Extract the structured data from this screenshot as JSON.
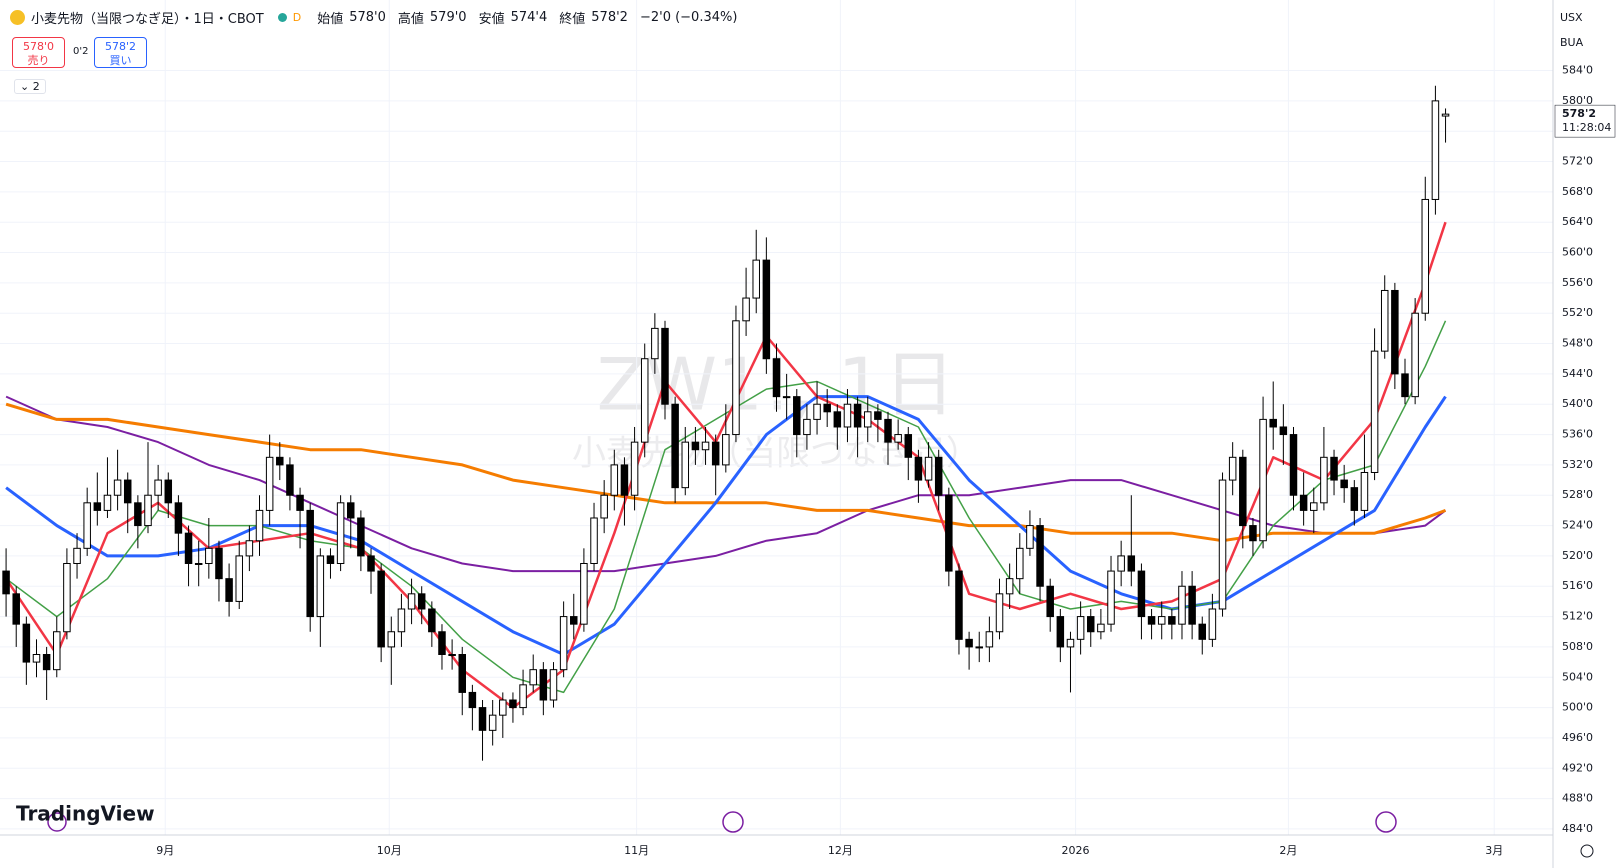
{
  "chart_data": {
    "type": "candlestick",
    "symbol": "小麦先物（当限つなぎ足）・1日・CBOT",
    "summary": {
      "open_label": "始値",
      "open": "578'0",
      "high_label": "高値",
      "high": "579'0",
      "low_label": "安値",
      "low": "574'4",
      "close_label": "終値",
      "close": "578'2",
      "change": "−2'0 (−0.34%)"
    },
    "sell": {
      "price": "578'0",
      "label": "売り"
    },
    "spread": "0'2",
    "buy": {
      "price": "578'2",
      "label": "買い"
    },
    "indicator_count": "2",
    "watermark": "ZW1!, 1日",
    "watermark_sub": "小麦先物（当限つなぎ足）",
    "currency": "USX",
    "unit": "BUA",
    "brand": "TradingView",
    "last_price": {
      "value": 578.25,
      "label": "578'2"
    },
    "countdown": "11:28:04",
    "up_color": "#ffffff",
    "down_color": "#000000",
    "xlim": [
      -0.6,
      152.6
    ],
    "xticks": [
      {
        "value": 15.7,
        "label": "9月"
      },
      {
        "value": 37.8,
        "label": "10月"
      },
      {
        "value": 62.2,
        "label": "11月"
      },
      {
        "value": 82.3,
        "label": "12月"
      },
      {
        "value": 105.5,
        "label": "2026"
      },
      {
        "value": 126.5,
        "label": "2月"
      },
      {
        "value": 146.8,
        "label": "3月"
      }
    ],
    "ylim": [
      483.2,
      593.3
    ],
    "yticks": [
      {
        "value": 484,
        "label": "484'0"
      },
      {
        "value": 488,
        "label": "488'0"
      },
      {
        "value": 492,
        "label": "492'0"
      },
      {
        "value": 496,
        "label": "496'0"
      },
      {
        "value": 500,
        "label": "500'0"
      },
      {
        "value": 504,
        "label": "504'0"
      },
      {
        "value": 508,
        "label": "508'0"
      },
      {
        "value": 512,
        "label": "512'0"
      },
      {
        "value": 516,
        "label": "516'0"
      },
      {
        "value": 520,
        "label": "520'0"
      },
      {
        "value": 524,
        "label": "524'0"
      },
      {
        "value": 528,
        "label": "528'0"
      },
      {
        "value": 532,
        "label": "532'0"
      },
      {
        "value": 536,
        "label": "536'0"
      },
      {
        "value": 540,
        "label": "540'0"
      },
      {
        "value": 544,
        "label": "544'0"
      },
      {
        "value": 548,
        "label": "548'0"
      },
      {
        "value": 552,
        "label": "552'0"
      },
      {
        "value": 556,
        "label": "556'0"
      },
      {
        "value": 560,
        "label": "560'0"
      },
      {
        "value": 564,
        "label": "564'0"
      },
      {
        "value": 568,
        "label": "568'0"
      },
      {
        "value": 572,
        "label": "572'0"
      },
      {
        "value": 576,
        "label": "576'0"
      },
      {
        "value": 580,
        "label": "580'0"
      },
      {
        "value": 584,
        "label": "584'0"
      }
    ],
    "grid": true,
    "candles": [
      [
        518,
        521,
        512,
        515
      ],
      [
        515,
        516,
        508,
        511
      ],
      [
        511,
        512,
        503,
        506
      ],
      [
        506,
        509,
        504,
        507
      ],
      [
        507,
        508,
        501,
        505
      ],
      [
        505,
        512,
        504,
        510
      ],
      [
        510,
        521,
        509,
        519
      ],
      [
        519,
        523,
        517,
        521
      ],
      [
        521,
        529,
        520,
        527
      ],
      [
        527,
        531,
        524,
        526
      ],
      [
        526,
        533,
        525,
        528
      ],
      [
        528,
        534,
        526,
        530
      ],
      [
        530,
        531,
        523,
        527
      ],
      [
        527,
        528,
        521,
        524
      ],
      [
        524,
        535,
        523,
        528
      ],
      [
        528,
        532,
        526,
        530
      ],
      [
        530,
        531,
        525,
        527
      ],
      [
        527,
        528,
        520,
        523
      ],
      [
        523,
        524,
        516,
        519
      ],
      [
        519,
        522,
        516,
        519
      ],
      [
        519,
        525,
        517,
        521
      ],
      [
        521,
        522,
        514,
        517
      ],
      [
        517,
        519,
        512,
        514
      ],
      [
        514,
        522,
        513,
        520
      ],
      [
        520,
        524,
        518,
        522
      ],
      [
        522,
        528,
        520,
        526
      ],
      [
        526,
        536,
        524,
        533
      ],
      [
        533,
        535,
        530,
        532
      ],
      [
        532,
        533,
        526,
        528
      ],
      [
        528,
        529,
        521,
        526
      ],
      [
        526,
        527,
        510,
        512
      ],
      [
        512,
        521,
        508,
        520
      ],
      [
        520,
        521,
        517,
        519
      ],
      [
        519,
        528,
        518,
        527
      ],
      [
        527,
        528,
        521,
        525
      ],
      [
        525,
        526,
        518,
        520
      ],
      [
        520,
        521,
        515,
        518
      ],
      [
        518,
        519,
        506,
        508
      ],
      [
        508,
        512,
        503,
        510
      ],
      [
        510,
        515,
        508,
        513
      ],
      [
        513,
        517,
        511,
        515
      ],
      [
        515,
        516,
        511,
        513
      ],
      [
        513,
        514,
        508,
        510
      ],
      [
        510,
        511,
        505,
        507
      ],
      [
        507,
        509,
        505,
        507
      ],
      [
        507,
        508,
        499,
        502
      ],
      [
        502,
        503,
        497,
        500
      ],
      [
        500,
        501,
        493,
        497
      ],
      [
        497,
        501,
        495,
        499
      ],
      [
        499,
        502,
        496,
        501
      ],
      [
        501,
        502,
        498,
        500
      ],
      [
        500,
        505,
        499,
        503
      ],
      [
        503,
        507,
        502,
        505
      ],
      [
        505,
        506,
        499,
        501
      ],
      [
        501,
        506,
        500,
        505
      ],
      [
        505,
        514,
        504,
        512
      ],
      [
        512,
        515,
        509,
        511
      ],
      [
        511,
        521,
        510,
        519
      ],
      [
        519,
        527,
        518,
        525
      ],
      [
        525,
        530,
        523,
        528
      ],
      [
        528,
        534,
        526,
        532
      ],
      [
        532,
        533,
        524,
        528
      ],
      [
        528,
        537,
        526,
        535
      ],
      [
        535,
        548,
        533,
        546
      ],
      [
        546,
        552,
        544,
        550
      ],
      [
        550,
        551,
        538,
        540
      ],
      [
        540,
        541,
        527,
        529
      ],
      [
        529,
        537,
        528,
        535
      ],
      [
        535,
        537,
        532,
        534
      ],
      [
        534,
        537,
        532,
        535
      ],
      [
        535,
        536,
        528,
        532
      ],
      [
        532,
        540,
        531,
        536
      ],
      [
        536,
        553,
        535,
        551
      ],
      [
        551,
        558,
        549,
        554
      ],
      [
        554,
        563,
        552,
        559
      ],
      [
        559,
        562,
        544,
        546
      ],
      [
        546,
        548,
        539,
        541
      ],
      [
        541,
        544,
        538,
        541
      ],
      [
        541,
        542,
        533,
        536
      ],
      [
        536,
        540,
        534,
        538
      ],
      [
        538,
        543,
        536,
        540
      ],
      [
        540,
        542,
        537,
        539
      ],
      [
        539,
        540,
        534,
        537
      ],
      [
        537,
        542,
        535,
        540
      ],
      [
        540,
        541,
        533,
        537
      ],
      [
        537,
        541,
        535,
        539
      ],
      [
        539,
        540,
        535,
        538
      ],
      [
        538,
        539,
        532,
        535
      ],
      [
        535,
        538,
        534,
        536
      ],
      [
        536,
        537,
        530,
        533
      ],
      [
        533,
        534,
        527,
        530
      ],
      [
        530,
        535,
        529,
        533
      ],
      [
        533,
        534,
        526,
        528
      ],
      [
        528,
        529,
        516,
        518
      ],
      [
        518,
        519,
        507,
        509
      ],
      [
        509,
        510,
        505,
        508
      ],
      [
        508,
        510,
        506,
        508
      ],
      [
        508,
        512,
        506,
        510
      ],
      [
        510,
        517,
        509,
        515
      ],
      [
        515,
        519,
        513,
        517
      ],
      [
        517,
        523,
        515,
        521
      ],
      [
        521,
        526,
        520,
        524
      ],
      [
        524,
        525,
        514,
        516
      ],
      [
        516,
        517,
        510,
        512
      ],
      [
        512,
        513,
        506,
        508
      ],
      [
        508,
        510,
        502,
        509
      ],
      [
        509,
        514,
        507,
        512
      ],
      [
        512,
        513,
        508,
        510
      ],
      [
        510,
        513,
        509,
        511
      ],
      [
        511,
        520,
        510,
        518
      ],
      [
        518,
        522,
        516,
        520
      ],
      [
        520,
        528,
        516,
        518
      ],
      [
        518,
        519,
        509,
        512
      ],
      [
        512,
        513,
        509,
        511
      ],
      [
        511,
        514,
        509,
        512
      ],
      [
        512,
        513,
        509,
        511
      ],
      [
        511,
        518,
        509,
        516
      ],
      [
        516,
        518,
        509,
        511
      ],
      [
        511,
        512,
        507,
        509
      ],
      [
        509,
        515,
        508,
        513
      ],
      [
        513,
        531,
        512,
        530
      ],
      [
        530,
        535,
        528,
        533
      ],
      [
        533,
        534,
        521,
        524
      ],
      [
        524,
        525,
        520,
        522
      ],
      [
        522,
        541,
        521,
        538
      ],
      [
        538,
        543,
        534,
        537
      ],
      [
        537,
        540,
        532,
        536
      ],
      [
        536,
        537,
        526,
        528
      ],
      [
        528,
        531,
        524,
        526
      ],
      [
        526,
        529,
        523,
        527
      ],
      [
        527,
        537,
        526,
        533
      ],
      [
        533,
        534,
        528,
        530
      ],
      [
        530,
        532,
        527,
        529
      ],
      [
        529,
        530,
        524,
        526
      ],
      [
        526,
        536,
        525,
        531
      ],
      [
        531,
        550,
        530,
        547
      ],
      [
        547,
        557,
        546,
        555
      ],
      [
        555,
        556,
        542,
        544
      ],
      [
        544,
        546,
        540,
        541
      ],
      [
        541,
        554,
        540,
        552
      ],
      [
        552,
        570,
        551,
        567
      ],
      [
        567,
        582,
        565,
        580
      ],
      [
        578,
        579,
        574.5,
        578.25
      ]
    ],
    "ma_x": [
      0,
      5,
      10,
      15,
      20,
      25,
      30,
      35,
      40,
      45,
      50,
      55,
      60,
      65,
      70,
      75,
      80,
      85,
      90,
      95,
      100,
      105,
      110,
      115,
      120,
      125,
      130,
      135,
      140,
      142
    ],
    "series": [
      {
        "color": "#7b1fa2",
        "width": 2,
        "values": [
          541,
          538,
          537,
          535,
          532,
          530,
          527,
          524,
          521,
          519,
          518,
          518,
          518,
          519,
          520,
          522,
          523,
          526,
          528,
          528,
          529,
          530,
          530,
          528,
          526,
          524,
          523,
          523,
          524,
          526
        ]
      },
      {
        "color": "#f57c00",
        "width": 3,
        "values": [
          540,
          538,
          538,
          537,
          536,
          535,
          534,
          534,
          533,
          532,
          530,
          529,
          528,
          527,
          527,
          527,
          526,
          526,
          525,
          524,
          524,
          523,
          523,
          523,
          522,
          523,
          523,
          523,
          525,
          526
        ]
      },
      {
        "color": "#2962ff",
        "width": 3,
        "values": [
          529,
          524,
          520,
          520,
          521,
          524,
          524,
          522,
          518,
          514,
          510,
          507,
          511,
          519,
          527,
          536,
          541,
          541,
          538,
          530,
          524,
          518,
          515,
          513,
          514,
          518,
          522,
          526,
          537,
          541
        ]
      },
      {
        "color": "#43a047",
        "width": 1.5,
        "values": [
          517,
          512,
          517,
          526,
          524,
          524,
          522,
          521,
          516,
          509,
          504,
          502,
          513,
          534,
          538,
          542,
          543,
          540,
          537,
          525,
          515,
          513,
          514,
          513,
          514,
          524,
          530,
          532,
          545,
          551
        ]
      },
      {
        "color": "#f23645",
        "width": 2.5,
        "values": [
          517,
          507,
          523,
          527,
          521,
          522,
          523,
          521,
          514,
          505,
          500,
          505,
          523,
          543,
          535,
          549,
          541,
          538,
          533,
          515,
          513,
          515,
          513,
          514,
          517,
          533,
          530,
          538,
          556,
          564
        ]
      }
    ]
  }
}
